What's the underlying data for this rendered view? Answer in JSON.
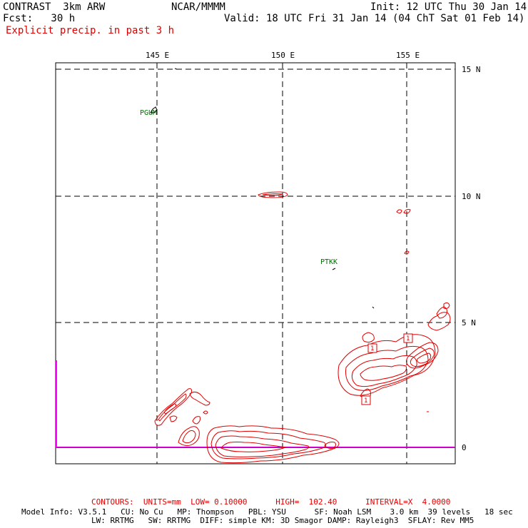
{
  "header": {
    "model": "CONTRAST  3km ARW",
    "org": "NCAR/MMMM",
    "init": "Init: 12 UTC Thu 30 Jan 14",
    "fcst": "Fcst:   30 h",
    "valid": "Valid: 18 UTC Fri 31 Jan 14 (04 ChT Sat 01 Feb 14)",
    "field": "Explicit precip. in past 3 h"
  },
  "map": {
    "lon_labels": [
      "145 E",
      "150 E",
      "155 E"
    ],
    "lat_labels": [
      "15 N",
      "10 N",
      "5 N",
      "0"
    ],
    "stations": [
      "PGUM",
      "PTKK"
    ],
    "contour_labels": [
      "1",
      "1",
      "1"
    ],
    "colors": {
      "frame": "#000000",
      "grid": "#000000",
      "contour": "#e00000",
      "station": "#007000",
      "equator": "#cc00cc"
    }
  },
  "footer": {
    "contours": "CONTOURS:  UNITS=mm  LOW= 0.10000      HIGH=  102.40      INTERVAL=X  4.0000",
    "model_info_1": "Model Info: V3.5.1   CU: No Cu   MP: Thompson   PBL: YSU      SF: Noah LSM    3.0 km  39 levels   18 sec",
    "model_info_2": "LW: RRTMG   SW: RRTMG  DIFF: simple KM: 3D Smagor DAMP: Rayleigh3  SFLAY: Rev MM5"
  }
}
